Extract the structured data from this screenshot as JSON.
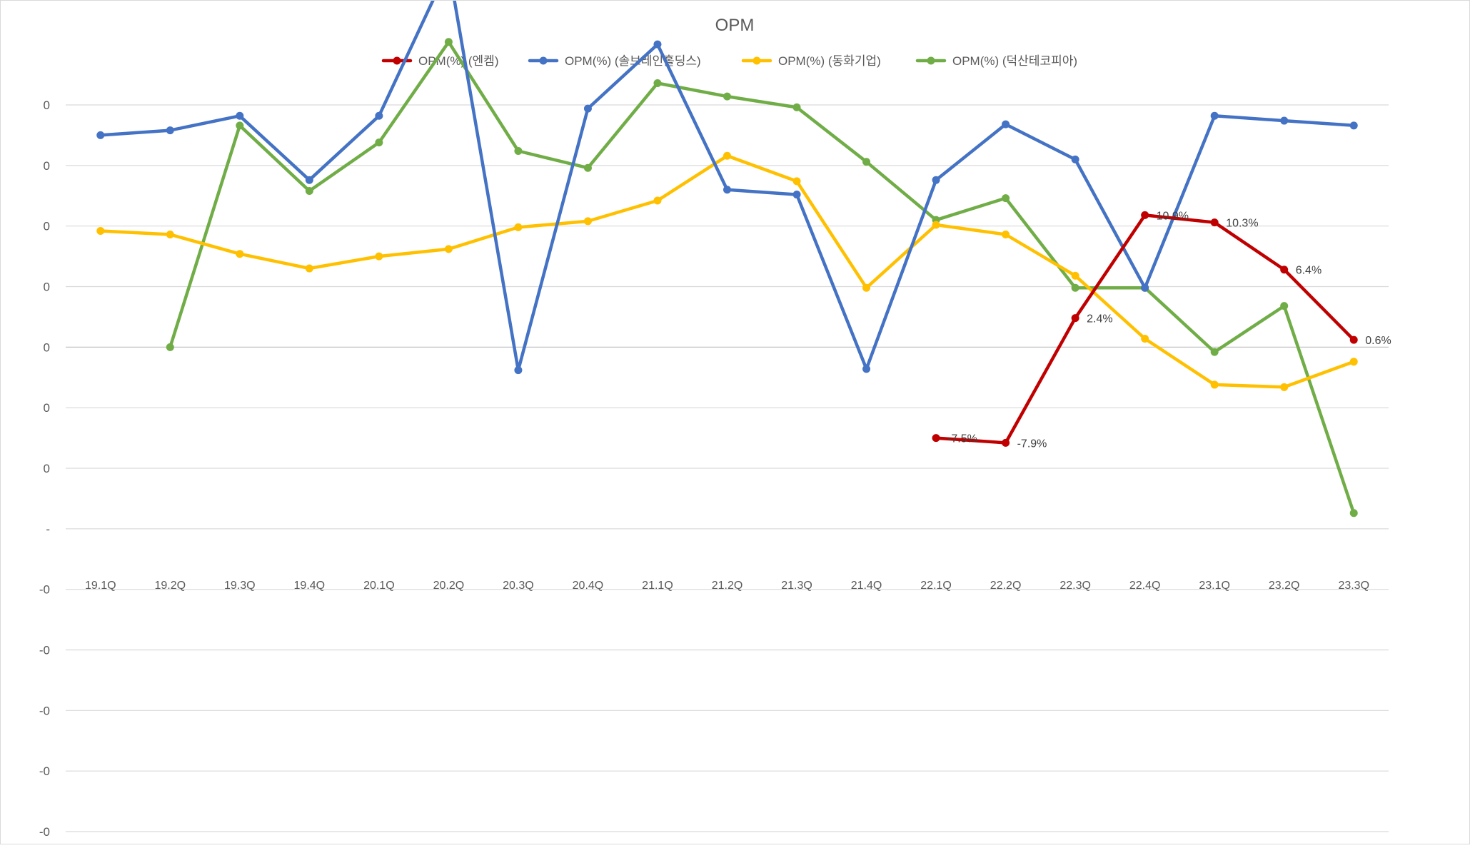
{
  "chart_data": {
    "type": "line",
    "title": "OPM",
    "xlabel": "",
    "ylabel": "",
    "legend_position": "top",
    "grid": true,
    "ylim": [
      -0.4,
      0.22
    ],
    "y_tick_values": [
      0.2,
      0.15,
      0.1,
      0.05,
      0.0,
      -0.05,
      -0.1,
      -0.15,
      -0.2,
      -0.25,
      -0.3,
      -0.35,
      -0.4
    ],
    "y_tick_labels": [
      "0",
      "0",
      "0",
      "0",
      "0",
      "0",
      "0",
      "-",
      "-0",
      "-0",
      "-0",
      "-0",
      "-0"
    ],
    "categories": [
      "19.1Q",
      "19.2Q",
      "19.3Q",
      "19.4Q",
      "20.1Q",
      "20.2Q",
      "20.3Q",
      "20.4Q",
      "21.1Q",
      "21.2Q",
      "21.3Q",
      "21.4Q",
      "22.1Q",
      "22.2Q",
      "22.3Q",
      "22.4Q",
      "23.1Q",
      "23.2Q",
      "23.3Q"
    ],
    "series": [
      {
        "name": "OPM(%) (엔켐)",
        "color": "#c00000",
        "values": [
          null,
          null,
          null,
          null,
          null,
          null,
          null,
          null,
          null,
          null,
          null,
          null,
          -0.075,
          -0.079,
          0.024,
          0.109,
          0.103,
          0.064,
          0.006
        ],
        "data_labels": [
          null,
          null,
          null,
          null,
          null,
          null,
          null,
          null,
          null,
          null,
          null,
          null,
          "-7.5%",
          "-7.9%",
          "2.4%",
          "10.9%",
          "10.3%",
          "6.4%",
          "0.6%"
        ]
      },
      {
        "name": "OPM(%) (솔브레인홀딩스)",
        "color": "#4472c4",
        "values": [
          0.175,
          0.179,
          0.191,
          0.138,
          0.191,
          0.314,
          -0.019,
          0.197,
          0.25,
          0.13,
          0.126,
          -0.018,
          0.138,
          0.184,
          0.155,
          0.049,
          0.191,
          0.187,
          0.183
        ]
      },
      {
        "name": "OPM(%) (동화기업)",
        "color": "#ffc000",
        "values": [
          0.096,
          0.093,
          0.077,
          0.065,
          0.075,
          0.081,
          0.099,
          0.104,
          0.121,
          0.158,
          0.137,
          0.049,
          0.101,
          0.093,
          0.059,
          0.007,
          -0.031,
          -0.033,
          -0.012
        ]
      },
      {
        "name": "OPM(%) (덕산테코피아)",
        "color": "#70ad47",
        "values": [
          null,
          0.0,
          0.183,
          0.129,
          0.169,
          0.252,
          0.162,
          0.148,
          0.218,
          0.207,
          0.198,
          0.153,
          0.105,
          0.123,
          0.049,
          0.049,
          -0.004,
          0.034,
          -0.137
        ]
      }
    ]
  }
}
